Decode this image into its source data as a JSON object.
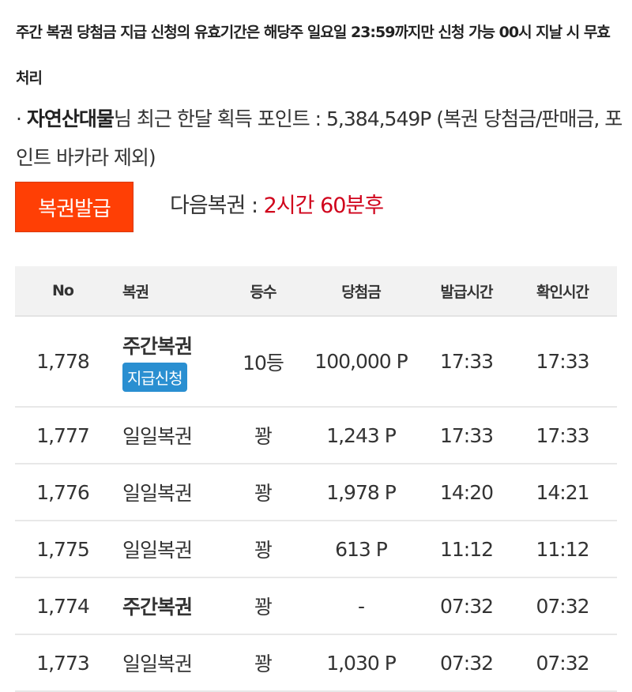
{
  "notice": "주간 복권 당첨금 지급 신청의 유효기간은 해당주 일요일 23:59까지만 신청 가능 00시 지날 시 무효 처리",
  "points": {
    "bullet": "·",
    "username": "자연산대물",
    "text": "님 최근 한달 획득 포인트 : 5,384,549P (복권 당첨금/판매금, 포인트 바카라 제외)"
  },
  "issue_button": "복권발급",
  "next": {
    "label": "다음복권 : ",
    "value": "2시간 60분후",
    "value_color": "#d0021b"
  },
  "accent_color": "#ff3f05",
  "table": {
    "headers": [
      "No",
      "복권",
      "등수",
      "당첨금",
      "발급시간",
      "확인시간"
    ],
    "rows": [
      {
        "no": "1,778",
        "type": "주간복권",
        "bold": true,
        "claim": "지급신청",
        "rank": "10등",
        "prize": "100,000 P",
        "issued": "17:33",
        "checked": "17:33"
      },
      {
        "no": "1,777",
        "type": "일일복권",
        "rank": "꽝",
        "prize": "1,243 P",
        "issued": "17:33",
        "checked": "17:33"
      },
      {
        "no": "1,776",
        "type": "일일복권",
        "rank": "꽝",
        "prize": "1,978 P",
        "issued": "14:20",
        "checked": "14:21"
      },
      {
        "no": "1,775",
        "type": "일일복권",
        "rank": "꽝",
        "prize": "613 P",
        "issued": "11:12",
        "checked": "11:12"
      },
      {
        "no": "1,774",
        "type": "주간복권",
        "bold": true,
        "rank": "꽝",
        "prize": "-",
        "issued": "07:32",
        "checked": "07:32"
      },
      {
        "no": "1,773",
        "type": "일일복권",
        "rank": "꽝",
        "prize": "1,030 P",
        "issued": "07:32",
        "checked": "07:32"
      }
    ]
  }
}
